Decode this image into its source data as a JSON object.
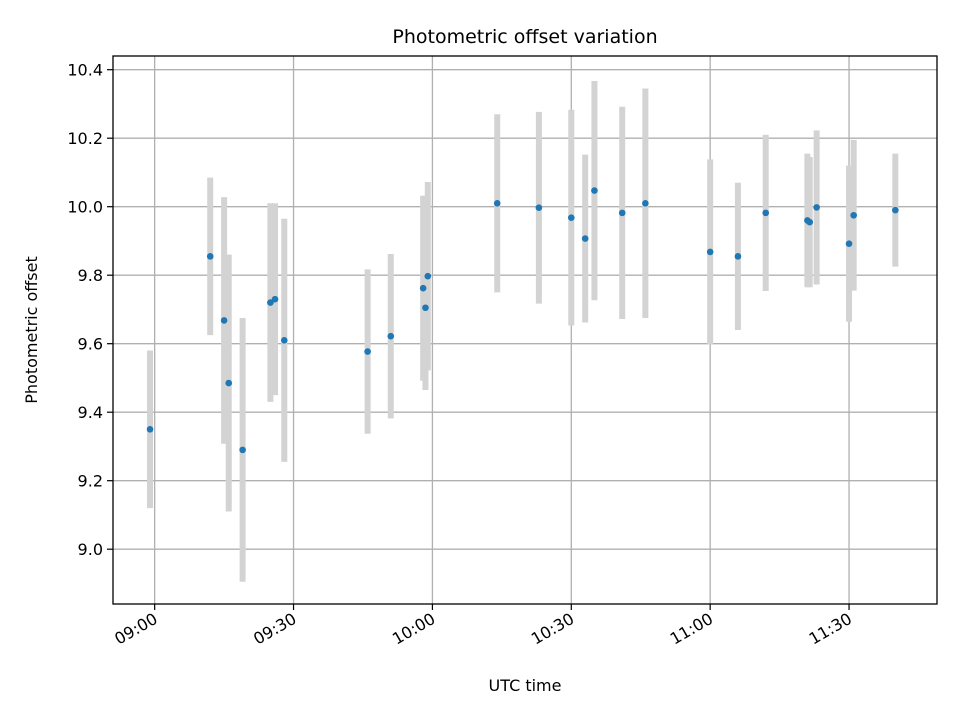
{
  "chart_data": {
    "type": "scatter",
    "title": "Photometric offset variation",
    "xlabel": "UTC time",
    "ylabel": "Photometric offset",
    "x_ticks": [
      "09:00",
      "09:30",
      "10:00",
      "10:30",
      "11:00",
      "11:30"
    ],
    "y_ticks": [
      "9.0",
      "9.2",
      "9.4",
      "9.6",
      "9.8",
      "10.0",
      "10.2",
      "10.4"
    ],
    "xlim": [
      "08:51",
      "11:49"
    ],
    "ylim": [
      8.84,
      10.44
    ],
    "grid": true,
    "colors": {
      "point": "#1f77b4",
      "errorbar": "#d3d3d3",
      "grid": "#b0b0b0"
    },
    "points": [
      {
        "t": "08:59",
        "y": 9.35,
        "err": 0.23
      },
      {
        "t": "09:12",
        "y": 9.855,
        "err": 0.23
      },
      {
        "t": "09:15",
        "y": 9.668,
        "err": 0.36
      },
      {
        "t": "09:16",
        "y": 9.485,
        "err": 0.375
      },
      {
        "t": "09:19",
        "y": 9.29,
        "err": 0.385
      },
      {
        "t": "09:25",
        "y": 9.72,
        "err": 0.29
      },
      {
        "t": "09:26",
        "y": 9.73,
        "err": 0.28
      },
      {
        "t": "09:28",
        "y": 9.61,
        "err": 0.355
      },
      {
        "t": "09:46",
        "y": 9.577,
        "err": 0.24
      },
      {
        "t": "09:51",
        "y": 9.622,
        "err": 0.24
      },
      {
        "t": "09:58",
        "y": 9.762,
        "err": 0.27
      },
      {
        "t": "09:58.5",
        "y": 9.705,
        "err": 0.24
      },
      {
        "t": "09:59",
        "y": 9.797,
        "err": 0.275
      },
      {
        "t": "10:14",
        "y": 10.01,
        "err": 0.26
      },
      {
        "t": "10:23",
        "y": 9.997,
        "err": 0.28
      },
      {
        "t": "10:30",
        "y": 9.968,
        "err": 0.315
      },
      {
        "t": "10:33",
        "y": 9.907,
        "err": 0.245
      },
      {
        "t": "10:35",
        "y": 10.047,
        "err": 0.32
      },
      {
        "t": "10:41",
        "y": 9.982,
        "err": 0.31
      },
      {
        "t": "10:46",
        "y": 10.01,
        "err": 0.335
      },
      {
        "t": "11:00",
        "y": 9.868,
        "err": 0.27
      },
      {
        "t": "11:06",
        "y": 9.855,
        "err": 0.215
      },
      {
        "t": "11:12",
        "y": 9.982,
        "err": 0.228
      },
      {
        "t": "11:21",
        "y": 9.96,
        "err": 0.195
      },
      {
        "t": "11:21.5",
        "y": 9.955,
        "err": 0.19
      },
      {
        "t": "11:23",
        "y": 9.998,
        "err": 0.225
      },
      {
        "t": "11:30",
        "y": 9.892,
        "err": 0.228
      },
      {
        "t": "11:31",
        "y": 9.975,
        "err": 0.22
      },
      {
        "t": "11:40",
        "y": 9.99,
        "err": 0.165
      }
    ]
  }
}
